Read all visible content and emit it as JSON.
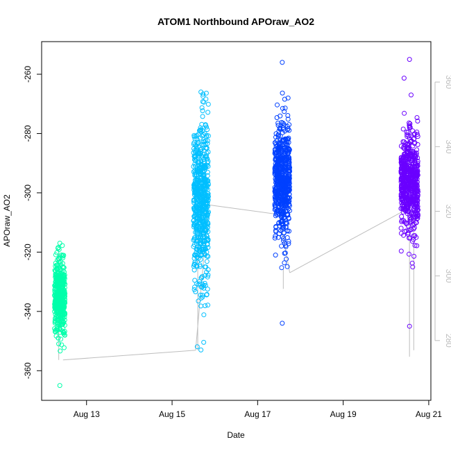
{
  "chart_data": {
    "type": "scatter",
    "title": "ATOM1 Northbound APOraw_AO2",
    "xlabel": "Date",
    "ylabel": "APOraw_AO2",
    "x_ticks": [
      {
        "value": 13,
        "label": "Aug 13"
      },
      {
        "value": 15,
        "label": "Aug 15"
      },
      {
        "value": 17,
        "label": "Aug 17"
      },
      {
        "value": 19,
        "label": "Aug 19"
      },
      {
        "value": 21,
        "label": "Aug 21"
      }
    ],
    "xlim": [
      11.95,
      21.05
    ],
    "ylim": [
      -370,
      -249
    ],
    "y_ticks": [
      -360,
      -340,
      -320,
      -300,
      -280,
      -260
    ],
    "y2_ticks": [
      280,
      300,
      320,
      340,
      360
    ],
    "y2lim": [
      261.5,
      372.5
    ],
    "grid": false,
    "clusters": [
      {
        "x_range": [
          12.25,
          12.5
        ],
        "y_center": -335,
        "y_spread": 8,
        "y_min": -365,
        "y_max": -317,
        "color": "#00ffaa",
        "count": 420
      },
      {
        "x_range": [
          15.5,
          15.85
        ],
        "y_center": -303,
        "y_spread": 17,
        "y_min": -353,
        "y_max": -266,
        "color": "#00bfff",
        "count": 620
      },
      {
        "x_range": [
          17.4,
          17.75
        ],
        "y_center": -296,
        "y_spread": 12,
        "y_min": -344,
        "y_max": -256,
        "color": "#0040ff",
        "count": 620
      },
      {
        "x_range": [
          20.35,
          20.75
        ],
        "y_center": -296,
        "y_spread": 11,
        "y_min": -345,
        "y_max": -255,
        "color": "#6a00ff",
        "count": 620
      }
    ],
    "series2": {
      "name": "",
      "color": "#bdbdbd",
      "points": [
        {
          "x": 12.45,
          "y": 274
        },
        {
          "x": 15.55,
          "y": 277
        },
        {
          "x": 15.85,
          "y": 322
        },
        {
          "x": 17.5,
          "y": 319
        },
        {
          "x": 17.75,
          "y": 301
        },
        {
          "x": 20.4,
          "y": 320
        }
      ],
      "vertical_lines": [
        {
          "x": 12.35,
          "y1": 274,
          "y2": 308
        },
        {
          "x": 15.6,
          "y1": 277,
          "y2": 312
        },
        {
          "x": 17.6,
          "y1": 296,
          "y2": 302
        },
        {
          "x": 20.55,
          "y1": 275,
          "y2": 321
        },
        {
          "x": 20.65,
          "y1": 277,
          "y2": 320
        }
      ]
    }
  }
}
